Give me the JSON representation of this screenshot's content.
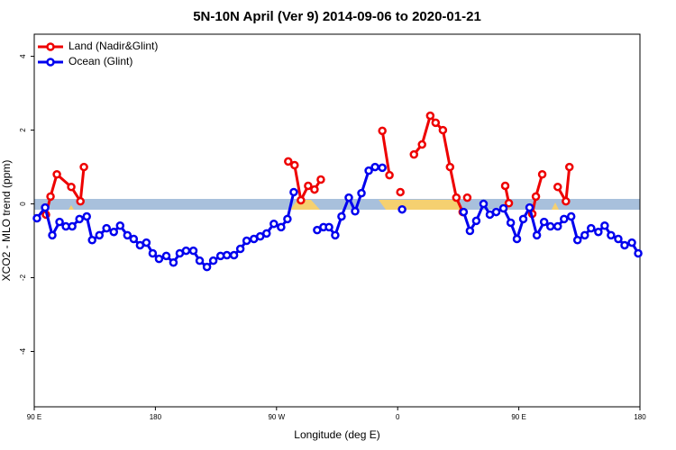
{
  "chart_data": {
    "type": "line",
    "title": "5N-10N April (Ver 9)   2014-09-06 to 2020-01-21",
    "x_label": "Longitude (deg E)",
    "y_label": "XCO2 - MLO trend (ppm)",
    "xlim": [
      90,
      540
    ],
    "xticks": [
      {
        "value": 90,
        "label": "90 E"
      },
      180,
      {
        "value": 270,
        "label": "90 W"
      },
      {
        "value": 360,
        "label": "0"
      },
      {
        "value": 450,
        "label": "90 E"
      },
      {
        "value": 540,
        "label": "180"
      }
    ],
    "ylim": [
      -5.5,
      4.6
    ],
    "yticks": [
      -4,
      -2,
      0,
      2,
      4
    ],
    "legend": "top-left",
    "series": [
      {
        "name": "Land (Nadir&Glint)",
        "color": "#ee0000",
        "x": [
          98.7,
          102.1,
          106.8,
          117.5,
          124.3,
          126.9,
          null,
          278.7,
          283.4,
          288.1,
          293.5,
          298.2,
          302.9,
          null,
          348.6,
          353.9,
          null,
          362.0,
          null,
          372.1,
          378.1,
          384.2,
          388.2,
          393.6,
          398.9,
          403.6,
          408.3,
          null,
          411.7,
          null,
          439.9,
          442.6,
          null,
          460.0,
          462.7,
          467.4,
          null,
          478.9,
          485.0,
          487.6
        ],
        "values": [
          -0.29,
          0.2,
          0.8,
          0.46,
          0.07,
          1.0,
          null,
          1.15,
          1.05,
          0.1,
          0.49,
          0.39,
          0.66,
          null,
          1.98,
          0.78,
          null,
          0.32,
          null,
          1.34,
          1.61,
          2.39,
          2.2,
          2.0,
          1.0,
          0.17,
          -0.22,
          null,
          0.17,
          null,
          0.49,
          0.02,
          null,
          -0.27,
          0.2,
          0.8,
          null,
          0.46,
          0.07,
          1.0
        ]
      },
      {
        "name": "Ocean (Glint)",
        "color": "#0000ee",
        "x": [
          92.0,
          98.1,
          103.4,
          108.8,
          113.5,
          118.2,
          123.6,
          129.0,
          133.0,
          138.4,
          143.7,
          149.1,
          153.8,
          159.2,
          163.9,
          168.6,
          173.3,
          178.0,
          182.7,
          188.1,
          193.4,
          198.1,
          202.8,
          208.2,
          212.9,
          218.3,
          223.0,
          228.4,
          233.1,
          238.4,
          243.1,
          247.8,
          253.2,
          257.9,
          262.6,
          268.0,
          273.4,
          278.1,
          282.8,
          null,
          300.2,
          304.9,
          309.0,
          313.6,
          318.3,
          323.7,
          328.4,
          333.1,
          338.5,
          343.2,
          348.6,
          null,
          363.3,
          null,
          409.0,
          413.7,
          418.4,
          423.8,
          428.5,
          433.2,
          438.6,
          444.0,
          448.6,
          453.3,
          458.0,
          463.4,
          468.8,
          473.5,
          478.9,
          483.6,
          488.9,
          493.6,
          499.0,
          503.7,
          509.1,
          513.8,
          518.5,
          523.9,
          528.6,
          534.0,
          538.7
        ],
        "values": [
          -0.39,
          -0.1,
          -0.85,
          -0.49,
          -0.61,
          -0.61,
          -0.41,
          -0.34,
          -0.98,
          -0.85,
          -0.66,
          -0.76,
          -0.59,
          -0.85,
          -0.95,
          -1.12,
          -1.05,
          -1.34,
          -1.49,
          -1.41,
          -1.59,
          -1.34,
          -1.27,
          -1.27,
          -1.54,
          -1.71,
          -1.54,
          -1.41,
          -1.39,
          -1.39,
          -1.22,
          -1.0,
          -0.95,
          -0.88,
          -0.8,
          -0.54,
          -0.63,
          -0.41,
          0.32,
          null,
          -0.71,
          -0.63,
          -0.63,
          -0.85,
          -0.34,
          0.17,
          -0.2,
          0.29,
          0.9,
          1.0,
          0.98,
          null,
          -0.15,
          null,
          -0.22,
          -0.73,
          -0.46,
          0.0,
          -0.29,
          -0.22,
          -0.12,
          -0.51,
          -0.95,
          -0.41,
          -0.1,
          -0.85,
          -0.49,
          -0.61,
          -0.61,
          -0.41,
          -0.34,
          -0.98,
          -0.85,
          -0.66,
          -0.76,
          -0.59,
          -0.85,
          -0.95,
          -1.12,
          -1.05,
          -1.34
        ]
      }
    ]
  }
}
